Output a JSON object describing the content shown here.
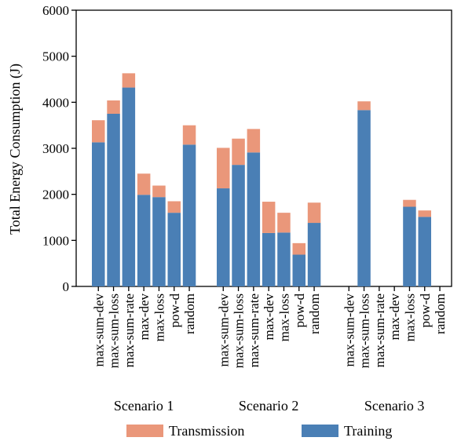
{
  "chart_data": {
    "type": "bar",
    "stacked": true,
    "ylabel": "Total Energy Consumption (J)",
    "ylim": [
      0,
      6000
    ],
    "yticks": [
      0,
      1000,
      2000,
      3000,
      4000,
      5000,
      6000
    ],
    "categories": [
      "max-sum-dev",
      "max-sum-loss",
      "max-sum-rate",
      "max-dev",
      "max-loss",
      "pow-d",
      "random"
    ],
    "groups": [
      "Scenario 1",
      "Scenario 2",
      "Scenario 3"
    ],
    "series": [
      {
        "name": "Training",
        "color": "#4a7fb5",
        "values": [
          [
            3130,
            3750,
            4320,
            1990,
            1940,
            1600,
            3080
          ],
          [
            2130,
            2640,
            2910,
            1160,
            1170,
            690,
            1380
          ],
          [
            null,
            3830,
            null,
            null,
            1730,
            1510,
            null
          ]
        ]
      },
      {
        "name": "Transmission",
        "color": "#ea977a",
        "values": [
          [
            480,
            290,
            310,
            460,
            250,
            250,
            420
          ],
          [
            880,
            570,
            510,
            680,
            430,
            250,
            440
          ],
          [
            null,
            190,
            null,
            null,
            150,
            140,
            null
          ]
        ]
      }
    ],
    "legend": {
      "position": "bottom",
      "entries": [
        "Transmission",
        "Training"
      ]
    },
    "grid": false
  }
}
